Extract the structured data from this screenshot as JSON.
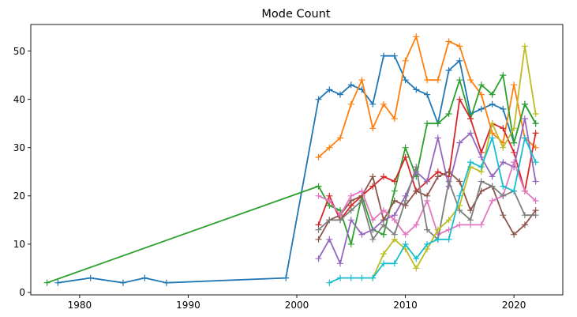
{
  "chart_data": {
    "type": "line",
    "title": "Mode Count",
    "xlabel": "",
    "ylabel": "",
    "xlim": [
      1975.5,
      2024.5
    ],
    "ylim": [
      -0.5,
      55.5
    ],
    "xticks": [
      1980,
      1990,
      2000,
      2010,
      2020
    ],
    "yticks": [
      0,
      10,
      20,
      30,
      40,
      50
    ],
    "grid": false,
    "legend": "none",
    "marker": "plus",
    "series": [
      {
        "color": "#1f77b4",
        "x": [
          1978,
          1981,
          1984,
          1986,
          1988,
          1999,
          2002,
          2003,
          2004,
          2005,
          2006,
          2007,
          2008,
          2009,
          2010,
          2011,
          2012,
          2013,
          2014,
          2015,
          2016,
          2017,
          2018,
          2019,
          2020,
          2021,
          2022
        ],
        "values": [
          2,
          3,
          2,
          3,
          2,
          3,
          40,
          42,
          41,
          43,
          42,
          39,
          49,
          49,
          44,
          42,
          41,
          35,
          46,
          48,
          37,
          38,
          39,
          38,
          31,
          39,
          35
        ]
      },
      {
        "color": "#ff7f0e",
        "x": [
          2002,
          2003,
          2004,
          2005,
          2006,
          2007,
          2008,
          2009,
          2010,
          2011,
          2012,
          2013,
          2014,
          2015,
          2016,
          2017,
          2018,
          2019,
          2020,
          2021,
          2022
        ],
        "values": [
          28,
          30,
          32,
          39,
          44,
          34,
          39,
          36,
          48,
          53,
          44,
          44,
          52,
          51,
          44,
          41,
          33,
          31,
          43,
          32,
          30
        ]
      },
      {
        "color": "#2ca02c",
        "x": [
          1977,
          2002,
          2003,
          2004,
          2005,
          2006,
          2007,
          2008,
          2009,
          2010,
          2011,
          2012,
          2013,
          2014,
          2015,
          2016,
          2017,
          2018,
          2019,
          2020,
          2021,
          2022
        ],
        "values": [
          2,
          22,
          18,
          17,
          10,
          20,
          13,
          12,
          21,
          30,
          24,
          35,
          35,
          37,
          44,
          36,
          43,
          41,
          45,
          31,
          39,
          35
        ]
      },
      {
        "color": "#d62728",
        "x": [
          2002,
          2003,
          2004,
          2005,
          2006,
          2007,
          2008,
          2009,
          2010,
          2011,
          2012,
          2013,
          2014,
          2015,
          2016,
          2017,
          2018,
          2019,
          2020,
          2021,
          2022
        ],
        "values": [
          14,
          20,
          15,
          18,
          20,
          22,
          24,
          23,
          28,
          21,
          23,
          25,
          24,
          40,
          36,
          29,
          35,
          34,
          29,
          21,
          33
        ]
      },
      {
        "color": "#9467bd",
        "x": [
          2002,
          2003,
          2004,
          2005,
          2006,
          2007,
          2008,
          2009,
          2010,
          2011,
          2012,
          2013,
          2014,
          2015,
          2016,
          2017,
          2018,
          2019,
          2020,
          2021,
          2022
        ],
        "values": [
          7,
          11,
          6,
          15,
          12,
          13,
          15,
          16,
          20,
          25,
          23,
          32,
          22,
          31,
          33,
          28,
          24,
          27,
          26,
          36,
          23
        ]
      },
      {
        "color": "#8c564b",
        "x": [
          2002,
          2003,
          2004,
          2005,
          2006,
          2007,
          2008,
          2009,
          2010,
          2011,
          2012,
          2013,
          2014,
          2015,
          2016,
          2017,
          2018,
          2019,
          2020,
          2021,
          2022
        ],
        "values": [
          11,
          15,
          16,
          19,
          20,
          24,
          15,
          19,
          18,
          21,
          20,
          24,
          25,
          23,
          17,
          21,
          22,
          16,
          12,
          14,
          17
        ]
      },
      {
        "color": "#e377c2",
        "x": [
          2002,
          2003,
          2004,
          2005,
          2006,
          2007,
          2008,
          2009,
          2010,
          2011,
          2012,
          2013,
          2014,
          2015,
          2016,
          2017,
          2018,
          2019,
          2020,
          2021,
          2022
        ],
        "values": [
          20,
          19,
          16,
          20,
          21,
          15,
          17,
          15,
          12,
          14,
          19,
          12,
          13,
          14,
          14,
          14,
          19,
          20,
          27,
          21,
          19
        ]
      },
      {
        "color": "#7f7f7f",
        "x": [
          2002,
          2003,
          2004,
          2005,
          2006,
          2007,
          2008,
          2009,
          2010,
          2011,
          2012,
          2013,
          2014,
          2015,
          2016,
          2017,
          2018,
          2019,
          2020,
          2021,
          2022
        ],
        "values": [
          13,
          15,
          15,
          17,
          19,
          11,
          14,
          12,
          19,
          26,
          13,
          11,
          23,
          17,
          15,
          23,
          22,
          20,
          21,
          16,
          16
        ]
      },
      {
        "color": "#bcbd22",
        "x": [
          2007,
          2008,
          2009,
          2010,
          2011,
          2012,
          2013,
          2014,
          2015,
          2016,
          2017,
          2018,
          2019,
          2020,
          2021,
          2022
        ],
        "values": [
          3,
          8,
          11,
          9,
          5,
          9,
          13,
          15,
          18,
          26,
          25,
          35,
          30,
          34,
          51,
          37
        ]
      },
      {
        "color": "#17becf",
        "x": [
          2003,
          2004,
          2005,
          2006,
          2007,
          2008,
          2009,
          2010,
          2011,
          2012,
          2013,
          2014,
          2015,
          2016,
          2017,
          2018,
          2019,
          2020,
          2021,
          2022
        ],
        "values": [
          2,
          3,
          3,
          3,
          3,
          6,
          6,
          10,
          7,
          10,
          11,
          11,
          20,
          27,
          26,
          32,
          22,
          21,
          32,
          27
        ]
      }
    ]
  }
}
